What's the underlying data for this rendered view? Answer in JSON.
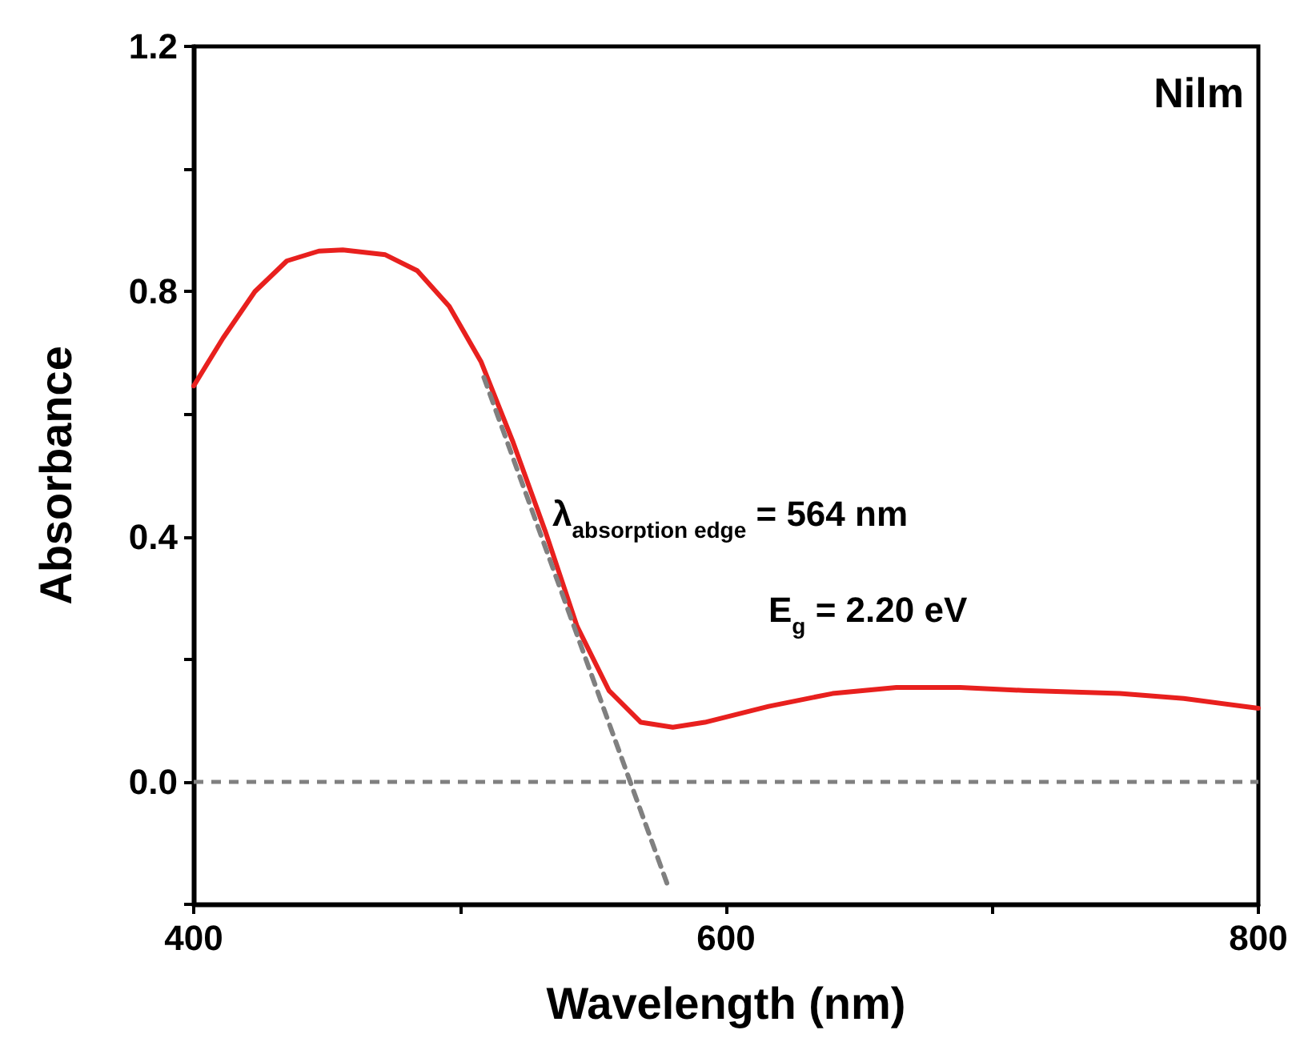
{
  "chart_data": {
    "type": "line",
    "xlabel": "Wavelength (nm)",
    "ylabel": "Absorbance",
    "xlim": [
      400,
      800
    ],
    "xticks": [
      400,
      {
        "value": 500,
        "label": null
      },
      600,
      {
        "value": 700,
        "label": null
      },
      800
    ],
    "ylim": [
      -0.2,
      1.2
    ],
    "yticks": [
      {
        "value": -0.2,
        "label": null
      },
      {
        "value": 0,
        "label": "0.0"
      },
      {
        "value": 0.2,
        "label": null
      },
      0.4,
      {
        "value": 0.6,
        "label": null
      },
      0.8,
      {
        "value": 1.0,
        "label": null
      },
      1.2
    ],
    "x": [
      400,
      411,
      423,
      435,
      447,
      456,
      472,
      484,
      496,
      508,
      520,
      532,
      544,
      556,
      568,
      580,
      592,
      616,
      640,
      664,
      688,
      712,
      748,
      772,
      800
    ],
    "series": [
      {
        "color": "#e8201e",
        "values": [
          0.646,
          0.724,
          0.8,
          0.85,
          0.866,
          0.868,
          0.86,
          0.834,
          0.776,
          0.685,
          0.554,
          0.41,
          0.254,
          0.149,
          0.097,
          0.089,
          0.097,
          0.123,
          0.144,
          0.154,
          0.154,
          0.149,
          0.144,
          0.136,
          0.12
        ]
      },
      {
        "color": "#808080",
        "line_style": "dashed",
        "x": [
          509,
          578
        ],
        "values": [
          0.66,
          -0.168
        ]
      }
    ],
    "ref_lines": [
      {
        "axis": "y",
        "value": 0,
        "color": "#808080",
        "line_style": "dashed"
      }
    ],
    "annotations": [
      "Nilm",
      "λ$_{absorption edge}$ = 564 nm",
      "E$_{g}$ = 2.20 eV"
    ],
    "grid": false,
    "marker": "none",
    "line_style": "solid"
  }
}
